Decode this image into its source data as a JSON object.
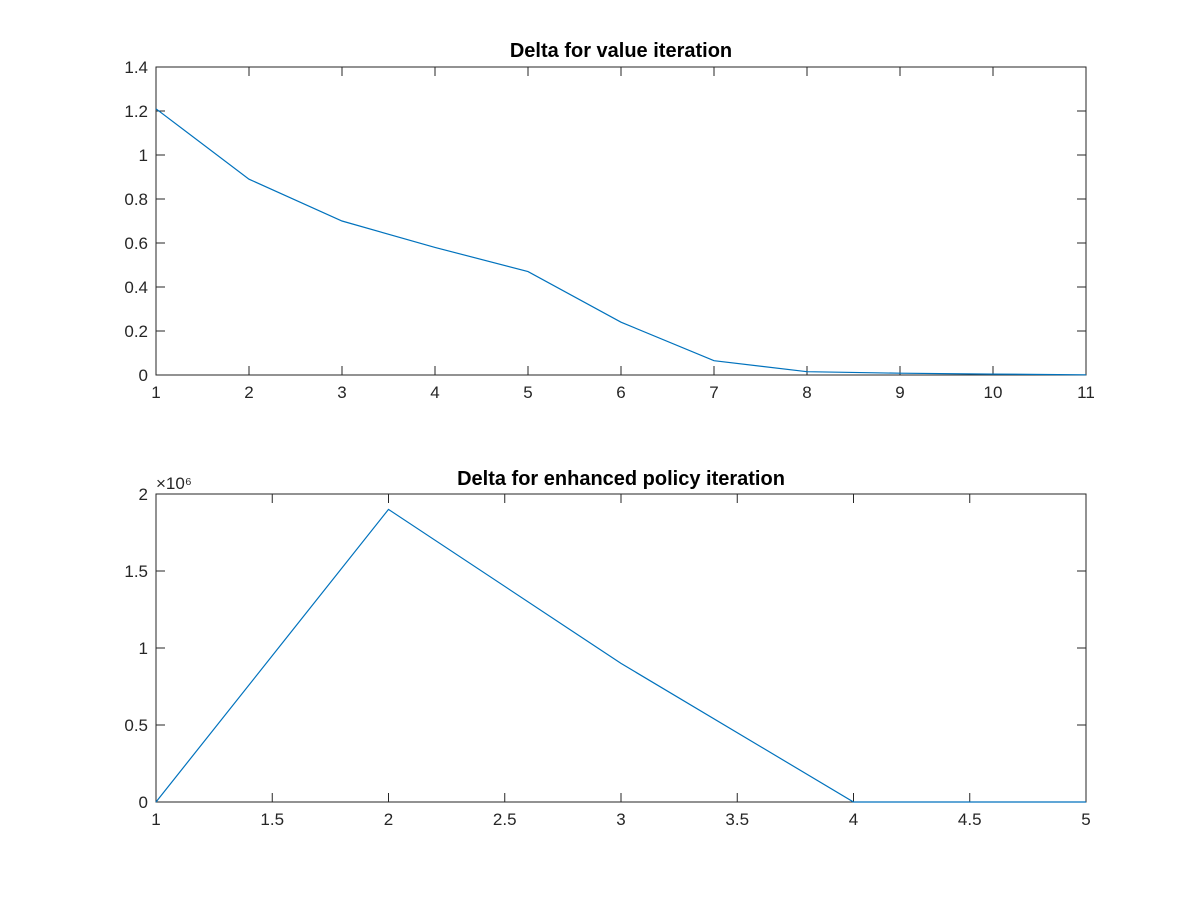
{
  "chart_data": [
    {
      "type": "line",
      "title": "Delta for value iteration",
      "xlabel": "",
      "ylabel": "",
      "xlim": [
        1,
        11
      ],
      "ylim": [
        0,
        1.4
      ],
      "x_ticks": [
        1,
        2,
        3,
        4,
        5,
        6,
        7,
        8,
        9,
        10,
        11
      ],
      "x_tick_labels": [
        "1",
        "2",
        "3",
        "4",
        "5",
        "6",
        "7",
        "8",
        "9",
        "10",
        "11"
      ],
      "y_ticks": [
        0,
        0.2,
        0.4,
        0.6,
        0.8,
        1,
        1.2,
        1.4
      ],
      "y_tick_labels": [
        "0",
        "0.2",
        "0.4",
        "0.6",
        "0.8",
        "1",
        "1.2",
        "1.4"
      ],
      "exponent_label": "",
      "grid": false,
      "legend": "none",
      "series": [
        {
          "color": "#0072BD",
          "x": [
            1,
            2,
            3,
            4,
            5,
            6,
            7,
            8,
            9,
            10,
            11
          ],
          "y": [
            1.21,
            0.89,
            0.7,
            0.58,
            0.47,
            0.24,
            0.065,
            0.015,
            0.008,
            0.004,
            0.001
          ]
        }
      ]
    },
    {
      "type": "line",
      "title": "Delta for enhanced policy iteration",
      "xlabel": "",
      "ylabel": "",
      "xlim": [
        1,
        5
      ],
      "ylim": [
        0,
        2000000
      ],
      "x_ticks": [
        1,
        1.5,
        2,
        2.5,
        3,
        3.5,
        4,
        4.5,
        5
      ],
      "x_tick_labels": [
        "1",
        "1.5",
        "2",
        "2.5",
        "3",
        "3.5",
        "4",
        "4.5",
        "5"
      ],
      "y_ticks": [
        0,
        500000,
        1000000,
        1500000,
        2000000
      ],
      "y_tick_labels": [
        "0",
        "0.5",
        "1",
        "1.5",
        "2"
      ],
      "exponent_label": "×10⁶",
      "grid": false,
      "legend": "none",
      "series": [
        {
          "color": "#0072BD",
          "x": [
            1,
            2,
            3,
            4,
            5
          ],
          "y": [
            0,
            1900000,
            900000,
            0,
            0
          ]
        }
      ]
    }
  ]
}
